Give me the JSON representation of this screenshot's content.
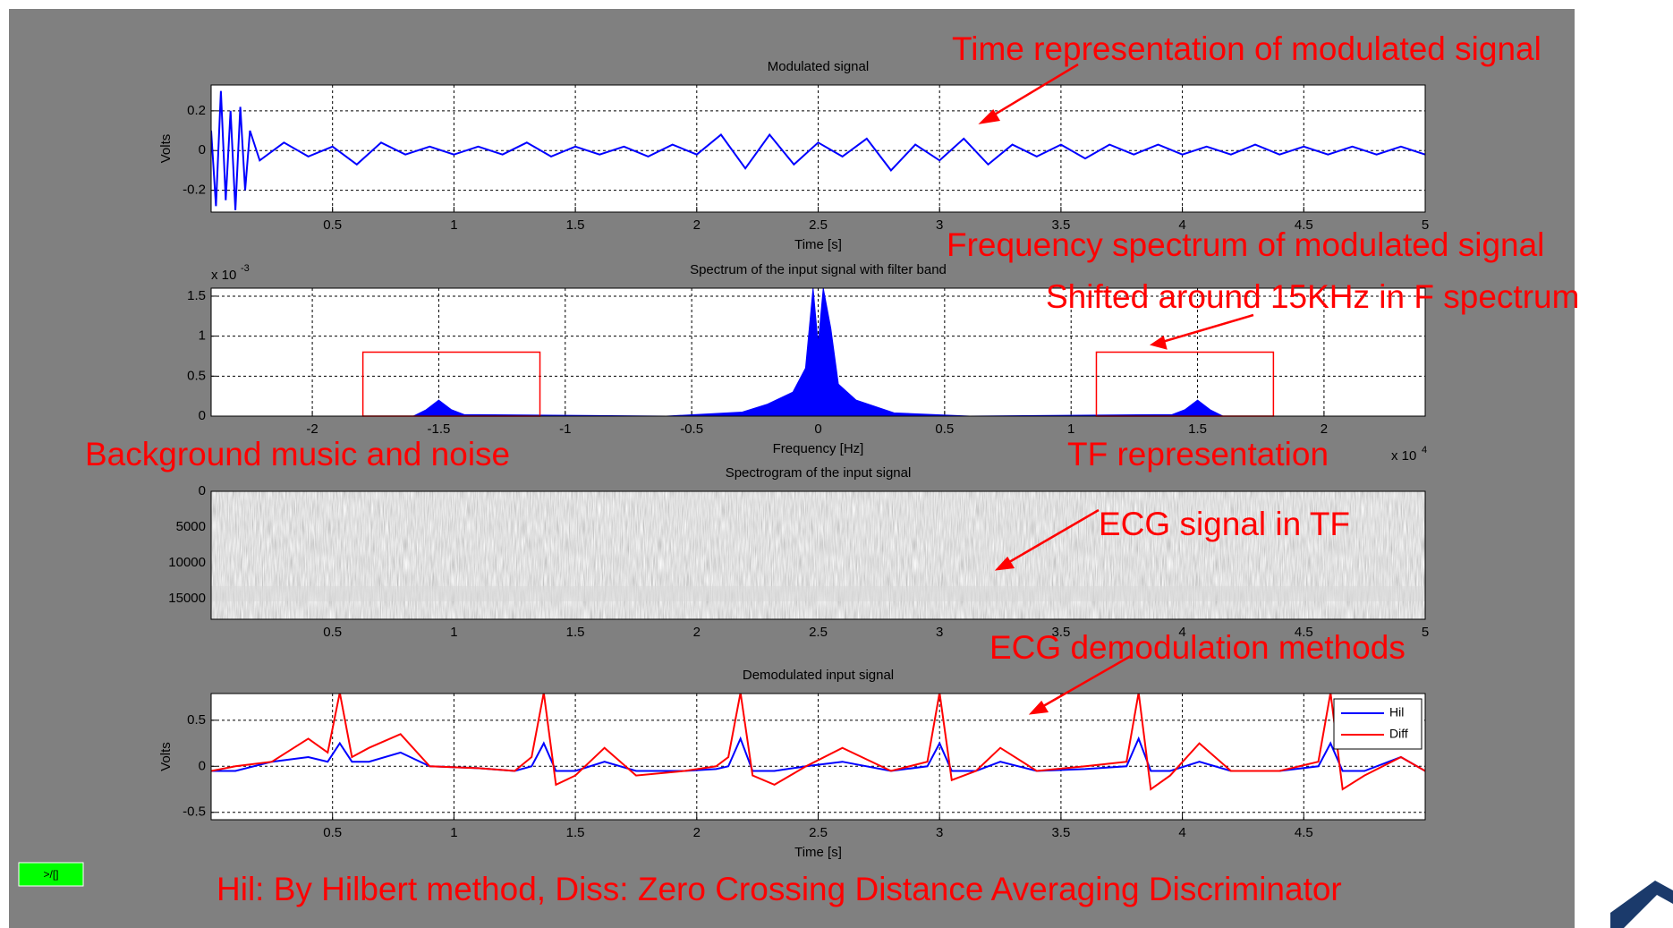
{
  "annotations": [
    "Time representation of modulated signal",
    "Frequency spectrum of modulated signal",
    "Shifted around 15KHz in F spectrum",
    "Background music and noise",
    "TF representation",
    "ECG signal in TF",
    "ECG demodulation methods",
    "Hil: By Hilbert method, Diss: Zero Crossing Distance Averaging Discriminator"
  ],
  "button": ">/[]",
  "chart_data": [
    {
      "type": "line",
      "title": "Modulated signal",
      "xlabel": "Time [s]",
      "ylabel": "Volts",
      "xlim": [
        0,
        5
      ],
      "ylim": [
        -0.31,
        0.33
      ],
      "xticks": [
        0.5,
        1,
        1.5,
        2,
        2.5,
        3,
        3.5,
        4,
        4.5,
        5
      ],
      "yticks": [
        -0.2,
        0,
        0.2
      ],
      "grid": true,
      "x": [
        0,
        0.02,
        0.04,
        0.06,
        0.08,
        0.1,
        0.12,
        0.14,
        0.16,
        0.2,
        0.3,
        0.4,
        0.5,
        0.6,
        0.7,
        0.8,
        0.9,
        1,
        1.1,
        1.2,
        1.3,
        1.4,
        1.5,
        1.6,
        1.7,
        1.8,
        1.9,
        2,
        2.1,
        2.2,
        2.3,
        2.4,
        2.5,
        2.6,
        2.7,
        2.8,
        2.9,
        3,
        3.1,
        3.2,
        3.3,
        3.4,
        3.5,
        3.6,
        3.7,
        3.8,
        3.9,
        4,
        4.1,
        4.2,
        4.3,
        4.4,
        4.5,
        4.6,
        4.7,
        4.8,
        4.9,
        5
      ],
      "series": [
        {
          "color": "#0000ff",
          "values": [
            0.1,
            -0.28,
            0.3,
            -0.25,
            0.2,
            -0.3,
            0.22,
            -0.2,
            0.1,
            -0.05,
            0.04,
            -0.03,
            0.02,
            -0.07,
            0.04,
            -0.02,
            0.02,
            -0.02,
            0.02,
            -0.02,
            0.04,
            -0.03,
            0.02,
            -0.02,
            0.02,
            -0.03,
            0.03,
            -0.02,
            0.08,
            -0.09,
            0.08,
            -0.07,
            0.04,
            -0.03,
            0.06,
            -0.1,
            0.03,
            -0.05,
            0.06,
            -0.07,
            0.03,
            -0.03,
            0.03,
            -0.04,
            0.03,
            -0.02,
            0.03,
            -0.02,
            0.02,
            -0.02,
            0.03,
            -0.02,
            0.02,
            -0.02,
            0.02,
            -0.02,
            0.02,
            -0.02
          ]
        }
      ]
    },
    {
      "type": "area",
      "title": "Spectrum of the input signal with filter band",
      "xlabel": "Frequency [Hz]",
      "x_multiplier": "x 10",
      "x_exponent": "4",
      "y_multiplier": "x 10",
      "y_exponent": "-3",
      "xlim": [
        -2.4,
        2.4
      ],
      "ylim": [
        0,
        1.6
      ],
      "xticks": [
        -2,
        -1.5,
        -1,
        -0.5,
        0,
        0.5,
        1,
        1.5,
        2
      ],
      "yticks": [
        0,
        0.5,
        1,
        1.5
      ],
      "grid": true,
      "x": [
        -2.4,
        -1.6,
        -1.55,
        -1.5,
        -1.45,
        -1.4,
        -0.6,
        -0.3,
        -0.2,
        -0.1,
        -0.05,
        -0.02,
        0,
        0.02,
        0.05,
        0.08,
        0.15,
        0.3,
        0.6,
        1.4,
        1.45,
        1.5,
        1.55,
        1.6,
        2.4
      ],
      "series": [
        {
          "color": "#0000ff",
          "values": [
            0,
            0,
            0.08,
            0.2,
            0.08,
            0.02,
            0,
            0.05,
            0.15,
            0.3,
            0.6,
            1.6,
            0.9,
            1.6,
            1.1,
            0.4,
            0.2,
            0.04,
            0,
            0.02,
            0.08,
            0.2,
            0.08,
            0,
            0
          ]
        }
      ],
      "band_color": "#ff0000",
      "bands": [
        {
          "x0": -1.8,
          "x1": -1.1,
          "y": 0.8
        },
        {
          "x0": 1.1,
          "x1": 1.8,
          "y": 0.8
        }
      ]
    },
    {
      "type": "spectrogram",
      "title": "Spectrogram of the input signal",
      "xlim": [
        0,
        5
      ],
      "ylim": [
        17900,
        0
      ],
      "xticks": [
        0.5,
        1,
        1.5,
        2,
        2.5,
        3,
        3.5,
        4,
        4.5,
        5
      ],
      "yticks": [
        0,
        5000,
        10000,
        15000
      ],
      "grid": false
    },
    {
      "type": "line",
      "title": "Demodulated input signal",
      "xlabel": "Time [s]",
      "ylabel": "Volts",
      "xlim": [
        0,
        5
      ],
      "ylim": [
        -0.58,
        0.79
      ],
      "xticks": [
        0.5,
        1,
        1.5,
        2,
        2.5,
        3,
        3.5,
        4,
        4.5
      ],
      "yticks": [
        -0.5,
        0,
        0.5
      ],
      "grid": true,
      "legend": "upper right",
      "x": [
        0,
        0.1,
        0.25,
        0.4,
        0.48,
        0.53,
        0.58,
        0.65,
        0.78,
        0.9,
        1.1,
        1.25,
        1.32,
        1.37,
        1.42,
        1.5,
        1.62,
        1.75,
        1.95,
        2.08,
        2.13,
        2.18,
        2.23,
        2.32,
        2.45,
        2.6,
        2.8,
        2.95,
        3,
        3.05,
        3.15,
        3.25,
        3.4,
        3.6,
        3.77,
        3.82,
        3.87,
        3.95,
        4.07,
        4.2,
        4.4,
        4.56,
        4.61,
        4.66,
        4.75,
        4.9,
        5
      ],
      "series": [
        {
          "name": "Hil",
          "color": "#0000ff",
          "values": [
            -0.05,
            -0.05,
            0.05,
            0.1,
            0.05,
            0.25,
            0.05,
            0.05,
            0.15,
            0,
            -0.02,
            -0.05,
            0,
            0.25,
            -0.05,
            -0.05,
            0.05,
            -0.05,
            -0.05,
            -0.03,
            0,
            0.3,
            -0.05,
            -0.05,
            0,
            0.05,
            -0.05,
            0,
            0.25,
            -0.05,
            -0.05,
            0.05,
            -0.05,
            -0.03,
            0,
            0.3,
            -0.05,
            -0.05,
            0.05,
            -0.05,
            -0.05,
            0,
            0.25,
            -0.05,
            -0.05,
            0.1,
            -0.05
          ]
        },
        {
          "name": "Diff",
          "color": "#ff0000",
          "values": [
            -0.05,
            0,
            0.05,
            0.3,
            0.15,
            0.8,
            0.1,
            0.2,
            0.35,
            0,
            -0.02,
            -0.05,
            0.1,
            0.8,
            -0.2,
            -0.1,
            0.2,
            -0.1,
            -0.05,
            0,
            0.1,
            0.8,
            -0.1,
            -0.2,
            0,
            0.2,
            -0.05,
            0.05,
            0.8,
            -0.15,
            -0.05,
            0.2,
            -0.05,
            0,
            0.05,
            0.8,
            -0.25,
            -0.1,
            0.25,
            -0.05,
            -0.05,
            0.05,
            0.8,
            -0.25,
            -0.1,
            0.1,
            -0.05
          ]
        }
      ]
    }
  ]
}
